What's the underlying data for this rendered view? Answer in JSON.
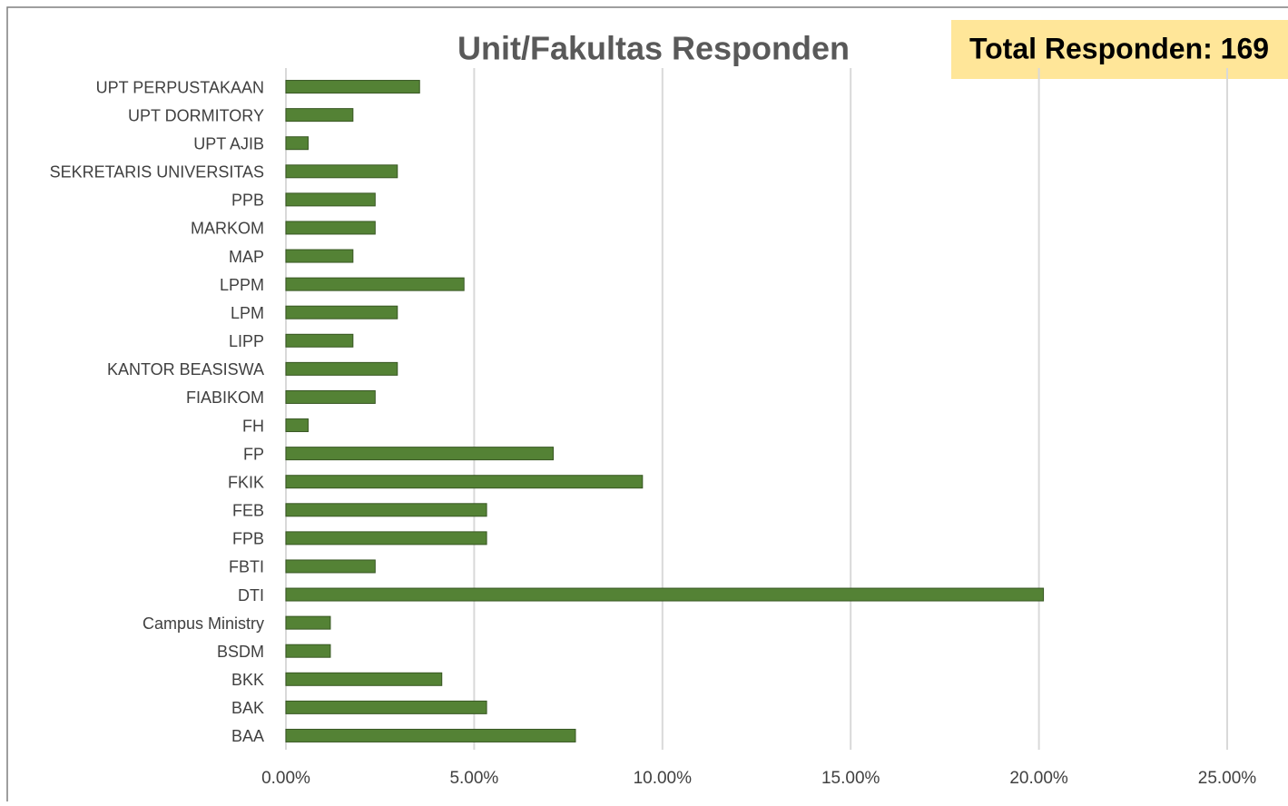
{
  "chart_data": {
    "type": "bar",
    "orientation": "horizontal",
    "title": "Unit/Fakultas Responden",
    "annotation": "Total Responden: 169",
    "categories": [
      "UPT PERPUSTAKAAN",
      "UPT DORMITORY",
      "UPT AJIB",
      "SEKRETARIS UNIVERSITAS",
      "PPB",
      "MARKOM",
      "MAP",
      "LPPM",
      "LPM",
      "LIPP",
      "KANTOR BEASISWA",
      "FIABIKOM",
      "FH",
      "FP",
      "FKIK",
      "FEB",
      "FPB",
      "FBTI",
      "DTI",
      "Campus Ministry",
      "BSDM",
      "BKK",
      "BAK",
      "BAA"
    ],
    "values": [
      3.55,
      1.78,
      0.59,
      2.96,
      2.37,
      2.37,
      1.78,
      4.73,
      2.96,
      1.78,
      2.96,
      2.37,
      0.59,
      7.1,
      9.47,
      5.33,
      5.33,
      2.37,
      20.12,
      1.18,
      1.18,
      4.14,
      5.33,
      7.69
    ],
    "color": "#548235",
    "xlim": [
      0,
      25
    ],
    "xticks": [
      {
        "value": 0,
        "label": "0.00%"
      },
      {
        "value": 5,
        "label": "5.00%"
      },
      {
        "value": 10,
        "label": "10.00%"
      },
      {
        "value": 15,
        "label": "15.00%"
      },
      {
        "value": 20,
        "label": "20.00%"
      },
      {
        "value": 25,
        "label": "25.00%"
      }
    ],
    "grid": true
  }
}
